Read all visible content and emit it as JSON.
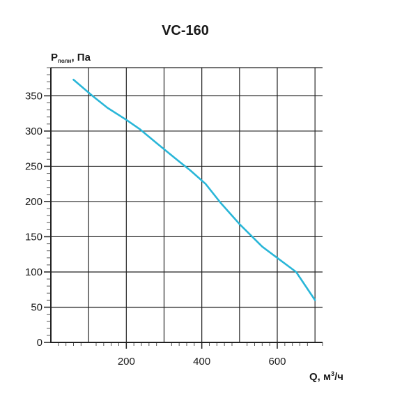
{
  "chart_data": {
    "type": "line",
    "title": "VC-160",
    "ylabel": {
      "main": "P",
      "sub": "полн",
      "suffix": ", Па"
    },
    "xlabel": {
      "main": "Q, м",
      "sup": "3",
      "suffix": "/ч"
    },
    "xlim": [
      0,
      720
    ],
    "ylim": [
      0,
      390
    ],
    "x_ticks": [
      200,
      400,
      600
    ],
    "y_ticks": [
      0,
      50,
      100,
      150,
      200,
      250,
      300,
      350
    ],
    "x_gridlines": [
      100,
      200,
      300,
      400,
      500,
      600,
      700
    ],
    "y_gridlines": [
      50,
      100,
      150,
      200,
      250,
      300,
      350,
      390
    ],
    "grid": true,
    "series": [
      {
        "color": "#29b6d8",
        "points": [
          [
            60,
            373
          ],
          [
            110,
            350
          ],
          [
            150,
            333
          ],
          [
            200,
            316
          ],
          [
            235,
            303
          ],
          [
            280,
            283
          ],
          [
            330,
            261
          ],
          [
            370,
            244
          ],
          [
            410,
            225
          ],
          [
            450,
            198
          ],
          [
            500,
            168
          ],
          [
            560,
            136
          ],
          [
            600,
            120
          ],
          [
            650,
            100
          ],
          [
            700,
            60
          ]
        ]
      }
    ]
  }
}
